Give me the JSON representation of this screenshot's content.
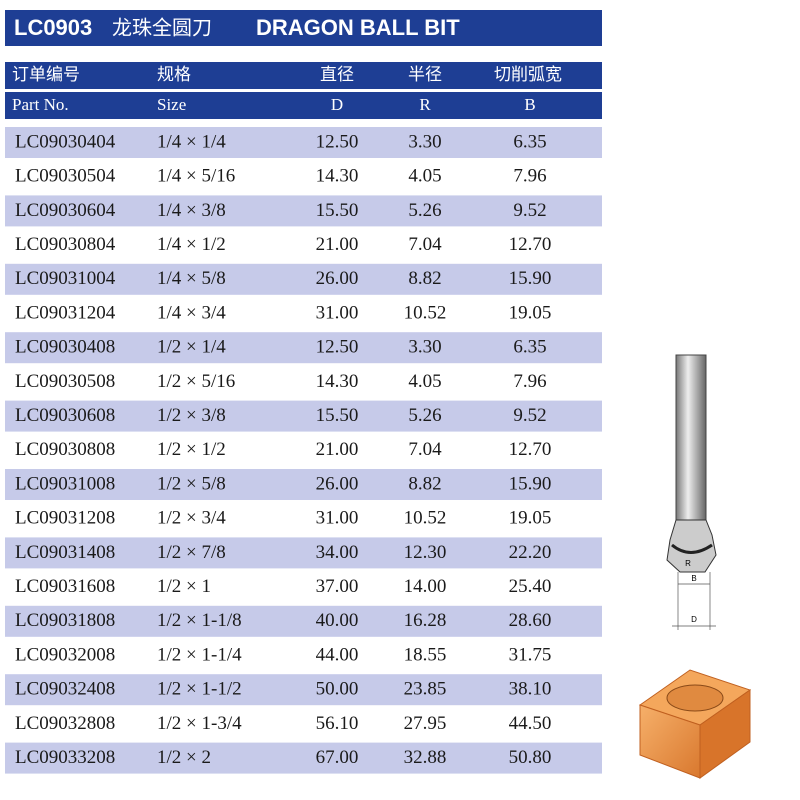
{
  "header": {
    "code": "LC0903",
    "title_cn": "龙珠全圆刀",
    "title_en": "DRAGON BALL BIT"
  },
  "table": {
    "headers_cn": [
      "订单编号",
      "规格",
      "直径",
      "半径",
      "切削弧宽"
    ],
    "headers_en": [
      "Part No.",
      "Size",
      "D",
      "R",
      "B"
    ],
    "rows": [
      [
        "LC09030404",
        "1/4 × 1/4",
        "12.50",
        "3.30",
        "6.35"
      ],
      [
        "LC09030504",
        "1/4 × 5/16",
        "14.30",
        "4.05",
        "7.96"
      ],
      [
        "LC09030604",
        "1/4 × 3/8",
        "15.50",
        "5.26",
        "9.52"
      ],
      [
        "LC09030804",
        "1/4 × 1/2",
        "21.00",
        "7.04",
        "12.70"
      ],
      [
        "LC09031004",
        "1/4 × 5/8",
        "26.00",
        "8.82",
        "15.90"
      ],
      [
        "LC09031204",
        "1/4 × 3/4",
        "31.00",
        "10.52",
        "19.05"
      ],
      [
        "LC09030408",
        "1/2 × 1/4",
        "12.50",
        "3.30",
        "6.35"
      ],
      [
        "LC09030508",
        "1/2 × 5/16",
        "14.30",
        "4.05",
        "7.96"
      ],
      [
        "LC09030608",
        "1/2 × 3/8",
        "15.50",
        "5.26",
        "9.52"
      ],
      [
        "LC09030808",
        "1/2 × 1/2",
        "21.00",
        "7.04",
        "12.70"
      ],
      [
        "LC09031008",
        "1/2 × 5/8",
        "26.00",
        "8.82",
        "15.90"
      ],
      [
        "LC09031208",
        "1/2 × 3/4",
        "31.00",
        "10.52",
        "19.05"
      ],
      [
        "LC09031408",
        "1/2 × 7/8",
        "34.00",
        "12.30",
        "22.20"
      ],
      [
        "LC09031608",
        "1/2 × 1",
        "37.00",
        "14.00",
        "25.40"
      ],
      [
        "LC09031808",
        "1/2 × 1-1/8",
        "40.00",
        "16.28",
        "28.60"
      ],
      [
        "LC09032008",
        "1/2 × 1-1/4",
        "44.00",
        "18.55",
        "31.75"
      ],
      [
        "LC09032408",
        "1/2 × 1-1/2",
        "50.00",
        "23.85",
        "38.10"
      ],
      [
        "LC09032808",
        "1/2 × 1-3/4",
        "56.10",
        "27.95",
        "44.50"
      ],
      [
        "LC09033208",
        "1/2 × 2",
        "67.00",
        "32.88",
        "50.80"
      ]
    ]
  },
  "diagram": {
    "labels": [
      "R",
      "B",
      "D"
    ]
  }
}
